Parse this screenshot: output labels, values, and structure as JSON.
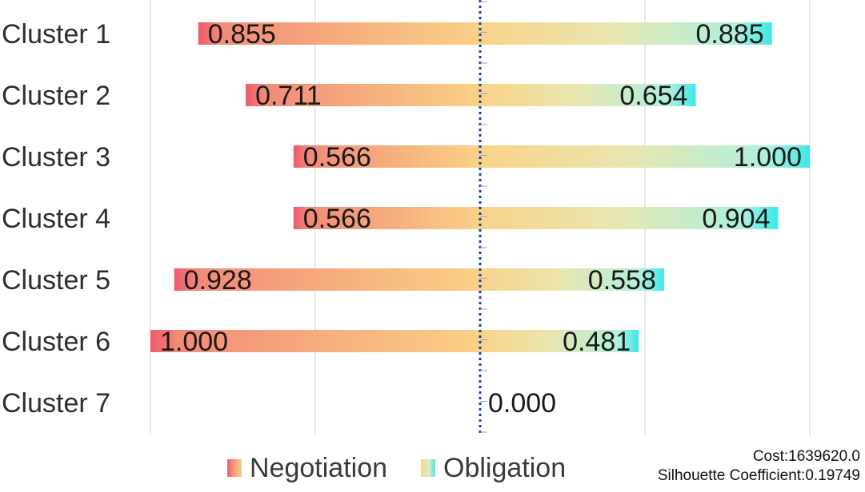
{
  "chart_data": {
    "type": "bar",
    "categories": [
      "Cluster 1",
      "Cluster 2",
      "Cluster 3",
      "Cluster 4",
      "Cluster 5",
      "Cluster 6",
      "Cluster 7"
    ],
    "series": [
      {
        "name": "Negotiation",
        "values": [
          0.855,
          0.711,
          0.566,
          0.566,
          0.928,
          1.0,
          null
        ],
        "labels": [
          "0.855",
          "0.711",
          "0.566",
          "0.566",
          "0.928",
          "1.000",
          ""
        ]
      },
      {
        "name": "Obligation",
        "values": [
          0.885,
          0.654,
          1.0,
          0.904,
          0.558,
          0.481,
          null
        ],
        "labels": [
          "0.885",
          "0.654",
          "1.000",
          "0.904",
          "0.558",
          "0.481",
          ""
        ]
      }
    ],
    "center_label": "0.000",
    "legend_position": "bottom",
    "colors": {
      "negotiation": [
        "#ee5a6a",
        "#f4a07c",
        "#f8cd84"
      ],
      "obligation": [
        "#f8d68a",
        "#d9ecc6",
        "#3fe8e6"
      ],
      "center_axis": "#1f3fa8",
      "grid": "#d4d4d4"
    }
  },
  "stats": {
    "cost": "Cost:1639620.0",
    "silhouette": "Silhouette Coefficient:0.19749"
  }
}
